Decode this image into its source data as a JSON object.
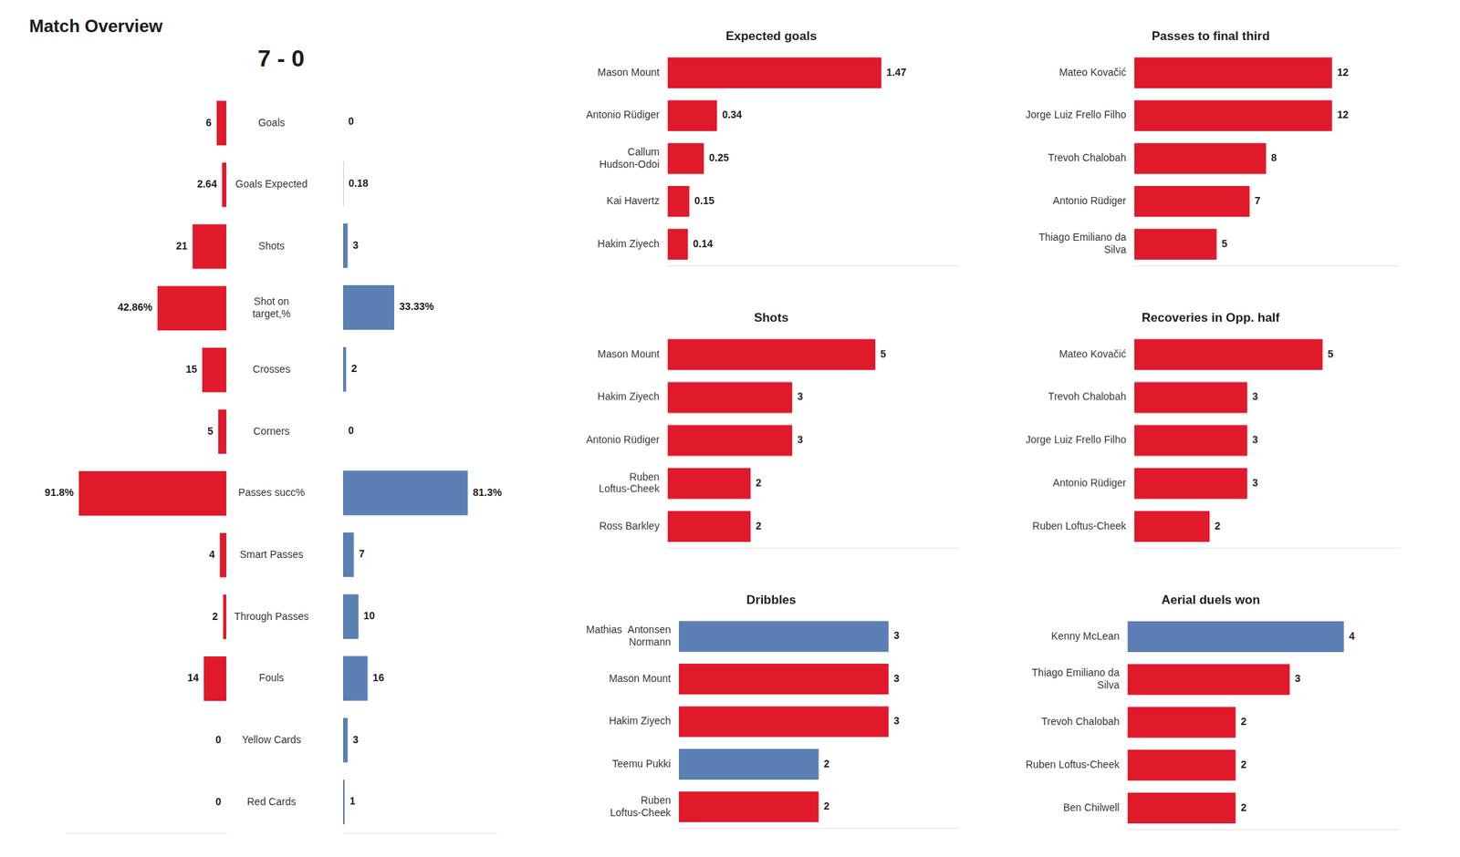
{
  "chart_data": [
    {
      "type": "bar",
      "orientation": "horizontal",
      "title": "Match Overview",
      "subtitle": "7 - 0",
      "categories": [
        "Goals",
        "Goals Expected",
        "Shots",
        "Shot on\ntarget,%",
        "Crosses",
        "Corners",
        "Passes succ%",
        "Smart Passes",
        "Through Passes",
        "Fouls",
        "Yellow Cards",
        "Red Cards"
      ],
      "series": [
        {
          "color": "#e0192b",
          "values": [
            6,
            2.64,
            21,
            42.86,
            15,
            5,
            91.8,
            4,
            2,
            14,
            0,
            0
          ],
          "value_labels": [
            "6",
            "2.64",
            "21",
            "42.86%",
            "15",
            "5",
            "91.8%",
            "4",
            "2",
            "14",
            "0",
            "0"
          ]
        },
        {
          "color": "#5b7fb5",
          "values": [
            0,
            0.18,
            3,
            33.33,
            2,
            0,
            81.3,
            7,
            10,
            16,
            3,
            1
          ],
          "value_labels": [
            "0",
            "0.18",
            "3",
            "33.33%",
            "2",
            "0",
            "81.3%",
            "7",
            "10",
            "16",
            "3",
            "1"
          ]
        }
      ],
      "xlim": [
        0,
        100
      ],
      "grid": false,
      "tick_labels": "y",
      "data_labels": true
    },
    {
      "type": "bar",
      "orientation": "horizontal",
      "title": "Expected goals",
      "categories": [
        "Mason Mount",
        "Antonio Rüdiger",
        "Callum\nHudson-Odoi",
        "Kai Havertz",
        "Hakim Ziyech"
      ],
      "values": [
        1.47,
        0.34,
        0.25,
        0.15,
        0.14
      ],
      "color": "#e0192b",
      "xlim": [
        0,
        2
      ],
      "grid": false,
      "tick_labels": "y",
      "data_labels": true
    },
    {
      "type": "bar",
      "orientation": "horizontal",
      "title": "Passes to final third",
      "categories": [
        "Mateo Kovačić",
        "Jorge Luiz Frello Filho",
        "Trevoh Chalobah",
        "Antonio Rüdiger",
        "Thiago Emiliano da\nSilva"
      ],
      "values": [
        12,
        12,
        8,
        7,
        5
      ],
      "color": "#e0192b",
      "xlim": [
        0,
        16
      ],
      "grid": false,
      "tick_labels": "y",
      "data_labels": true
    },
    {
      "type": "bar",
      "orientation": "horizontal",
      "title": "Shots",
      "categories": [
        "Mason Mount",
        "Hakim Ziyech",
        "Antonio Rüdiger",
        "Ruben\nLoftus-Cheek",
        "Ross Barkley"
      ],
      "values": [
        5,
        3,
        3,
        2,
        2
      ],
      "color": "#e0192b",
      "xlim": [
        0,
        7
      ],
      "grid": false,
      "tick_labels": "y",
      "data_labels": true
    },
    {
      "type": "bar",
      "orientation": "horizontal",
      "title": "Recoveries in Opp. half",
      "categories": [
        "Mateo Kovačić",
        "Trevoh Chalobah",
        "Jorge Luiz Frello Filho",
        "Antonio Rüdiger",
        "Ruben Loftus-Cheek"
      ],
      "values": [
        5,
        3,
        3,
        3,
        2
      ],
      "color": "#e0192b",
      "xlim": [
        0,
        7
      ],
      "grid": false,
      "tick_labels": "y",
      "data_labels": true
    },
    {
      "type": "bar",
      "orientation": "horizontal",
      "title": "Dribbles",
      "categories": [
        "Mathias  Antonsen\nNormann",
        "Mason Mount",
        "Hakim Ziyech",
        "Teemu Pukki",
        "Ruben\nLoftus-Cheek"
      ],
      "values": [
        3,
        3,
        3,
        2,
        2
      ],
      "colors": [
        "#5b7fb5",
        "#e0192b",
        "#e0192b",
        "#5b7fb5",
        "#e0192b"
      ],
      "xlim": [
        0,
        4
      ],
      "grid": false,
      "tick_labels": "y",
      "data_labels": true
    },
    {
      "type": "bar",
      "orientation": "horizontal",
      "title": "Aerial duels won",
      "categories": [
        "Kenny McLean",
        "Thiago Emiliano da\nSilva",
        "Trevoh Chalobah",
        "Ruben Loftus-Cheek",
        "Ben Chilwell"
      ],
      "values": [
        4,
        3,
        2,
        2,
        2
      ],
      "colors": [
        "#5b7fb5",
        "#e0192b",
        "#e0192b",
        "#e0192b",
        "#e0192b"
      ],
      "xlim": [
        0,
        5
      ],
      "grid": false,
      "tick_labels": "y",
      "data_labels": true
    }
  ]
}
